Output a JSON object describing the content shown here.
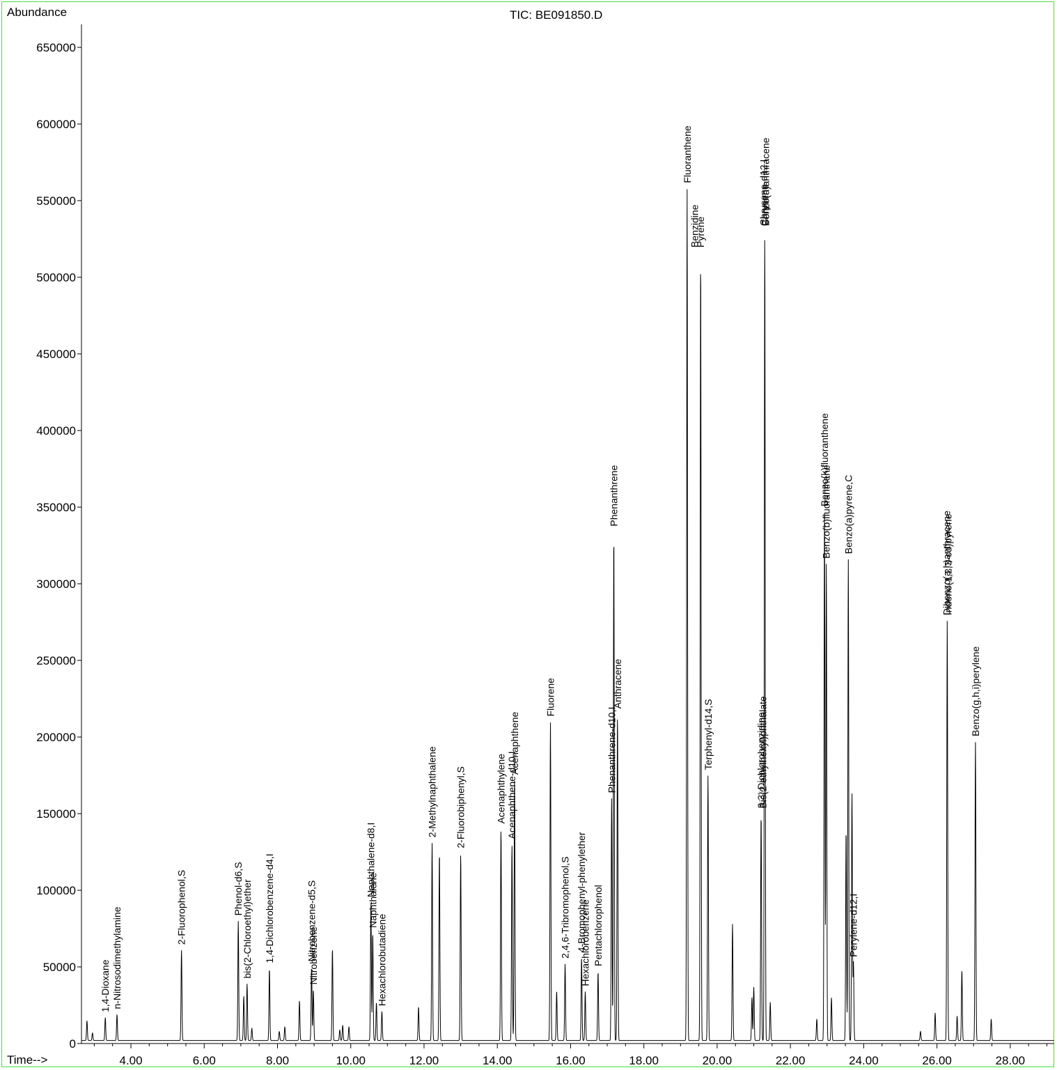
{
  "chart_data": {
    "type": "line",
    "title": "TIC: BE091850.D",
    "ylabel": "Abundance",
    "xlabel": "Time-->",
    "xlim": [
      2.65,
      29.2
    ],
    "ylim": [
      0,
      665000
    ],
    "grid": false,
    "legend": "none",
    "x_ticks": [
      4,
      6,
      8,
      10,
      12,
      14,
      16,
      18,
      20,
      22,
      24,
      26,
      28
    ],
    "x_tick_labels": [
      "4.00",
      "6.00",
      "8.00",
      "10.00",
      "12.00",
      "14.00",
      "16.00",
      "18.00",
      "20.00",
      "22.00",
      "24.00",
      "26.00",
      "28.00"
    ],
    "y_ticks": [
      0,
      50000,
      100000,
      150000,
      200000,
      250000,
      300000,
      350000,
      400000,
      450000,
      500000,
      550000,
      600000,
      650000
    ],
    "y_tick_labels": [
      "0",
      "50000",
      "100000",
      "150000",
      "200000",
      "250000",
      "300000",
      "350000",
      "400000",
      "450000",
      "500000",
      "550000",
      "600000",
      "650000"
    ],
    "baseline": 2000,
    "peaks": [
      {
        "rt": 2.8,
        "height": 13000
      },
      {
        "rt": 2.95,
        "height": 5000
      },
      {
        "rt": 3.3,
        "height": 15000
      },
      {
        "rt": 3.62,
        "height": 17000
      },
      {
        "rt": 5.38,
        "height": 59000
      },
      {
        "rt": 6.93,
        "height": 78000
      },
      {
        "rt": 7.08,
        "height": 29000
      },
      {
        "rt": 7.17,
        "height": 37000
      },
      {
        "rt": 7.3,
        "height": 8000
      },
      {
        "rt": 7.78,
        "height": 47000
      },
      {
        "rt": 8.05,
        "height": 6000
      },
      {
        "rt": 8.2,
        "height": 9000
      },
      {
        "rt": 8.6,
        "height": 26000
      },
      {
        "rt": 8.93,
        "height": 48000
      },
      {
        "rt": 8.98,
        "height": 33000
      },
      {
        "rt": 9.5,
        "height": 60000
      },
      {
        "rt": 9.7,
        "height": 7000
      },
      {
        "rt": 9.78,
        "height": 10000
      },
      {
        "rt": 9.95,
        "height": 9000
      },
      {
        "rt": 10.55,
        "height": 90000
      },
      {
        "rt": 10.6,
        "height": 70000
      },
      {
        "rt": 10.7,
        "height": 25000
      },
      {
        "rt": 10.85,
        "height": 19000
      },
      {
        "rt": 11.85,
        "height": 22000
      },
      {
        "rt": 12.22,
        "height": 129000
      },
      {
        "rt": 12.42,
        "height": 123000
      },
      {
        "rt": 13.0,
        "height": 122000
      },
      {
        "rt": 14.1,
        "height": 138000
      },
      {
        "rt": 14.4,
        "height": 128000
      },
      {
        "rt": 14.47,
        "height": 170000
      },
      {
        "rt": 15.45,
        "height": 208000
      },
      {
        "rt": 15.62,
        "height": 32000
      },
      {
        "rt": 15.85,
        "height": 50000
      },
      {
        "rt": 16.3,
        "height": 54000
      },
      {
        "rt": 16.4,
        "height": 32000
      },
      {
        "rt": 16.75,
        "height": 45000
      },
      {
        "rt": 17.12,
        "height": 158000
      },
      {
        "rt": 17.18,
        "height": 332000
      },
      {
        "rt": 17.28,
        "height": 213000
      },
      {
        "rt": 19.18,
        "height": 556000
      },
      {
        "rt": 19.55,
        "height": 514000
      },
      {
        "rt": 19.75,
        "height": 173000
      },
      {
        "rt": 20.42,
        "height": 76000
      },
      {
        "rt": 20.95,
        "height": 28000
      },
      {
        "rt": 21.0,
        "height": 35000
      },
      {
        "rt": 21.2,
        "height": 148000
      },
      {
        "rt": 21.3,
        "height": 528000
      },
      {
        "rt": 21.45,
        "height": 25000
      },
      {
        "rt": 22.72,
        "height": 14000
      },
      {
        "rt": 22.93,
        "height": 345000
      },
      {
        "rt": 22.98,
        "height": 311000
      },
      {
        "rt": 23.12,
        "height": 28000
      },
      {
        "rt": 23.52,
        "height": 138000
      },
      {
        "rt": 23.58,
        "height": 314000
      },
      {
        "rt": 23.68,
        "height": 162000
      },
      {
        "rt": 23.72,
        "height": 51000
      },
      {
        "rt": 25.55,
        "height": 6000
      },
      {
        "rt": 25.95,
        "height": 18000
      },
      {
        "rt": 26.28,
        "height": 274000
      },
      {
        "rt": 26.55,
        "height": 16000
      },
      {
        "rt": 26.68,
        "height": 46000
      },
      {
        "rt": 27.05,
        "height": 195000
      },
      {
        "rt": 27.48,
        "height": 14000
      }
    ],
    "annotations": [
      {
        "text": "1,4-Dioxane",
        "rt": 3.3
      },
      {
        "text": "n-Nitrosodimethylamine",
        "rt": 3.62
      },
      {
        "text": "2-Fluorophenol,S",
        "rt": 5.38
      },
      {
        "text": "Phenol-d6,S",
        "rt": 6.93
      },
      {
        "text": "bis(2-Chloroethyl)ether",
        "rt": 7.17
      },
      {
        "text": "1,4-Dichlorobenzene-d4,I",
        "rt": 7.78
      },
      {
        "text": "Nitrobenzene-d5,S",
        "rt": 8.93
      },
      {
        "text": "Nitrobenzene",
        "rt": 8.98
      },
      {
        "text": "Naphthalene-d8,I",
        "rt": 10.55
      },
      {
        "text": "Naphthalene",
        "rt": 10.6
      },
      {
        "text": "Hexachlorobutadiene",
        "rt": 10.85
      },
      {
        "text": "2-Methylnaphthalene",
        "rt": 12.22
      },
      {
        "text": "2-Fluorobiphenyl,S",
        "rt": 13.0
      },
      {
        "text": "Acenaphthylene",
        "rt": 14.1
      },
      {
        "text": "Acenaphthene-d10,I",
        "rt": 14.4
      },
      {
        "text": "Acenaphthene",
        "rt": 14.47
      },
      {
        "text": "Fluorene",
        "rt": 15.45
      },
      {
        "text": "2,4,6-Tribromophenol,S",
        "rt": 15.85
      },
      {
        "text": "4-Bromophenyl-phenylether",
        "rt": 16.3
      },
      {
        "text": "Hexachlorobenzene",
        "rt": 16.4
      },
      {
        "text": "Pentachlorophenol",
        "rt": 16.75
      },
      {
        "text": "Phenanthrene-d10,I",
        "rt": 17.12
      },
      {
        "text": "Phenanthrene",
        "rt": 17.18
      },
      {
        "text": "Anthracene",
        "rt": 17.28
      },
      {
        "text": "Fluoranthene",
        "rt": 19.18
      },
      {
        "text": "Benzidine",
        "rt": 19.38
      },
      {
        "text": "Pyrene",
        "rt": 19.55
      },
      {
        "text": "Terphenyl-d14,S",
        "rt": 19.75
      },
      {
        "text": "3,3'-Dichlorobenzidine",
        "rt": 21.2
      },
      {
        "text": "Bis(2-ethylhexyl)phthalate",
        "rt": 21.25
      },
      {
        "text": "Chrysene-d12,I",
        "rt": 21.27
      },
      {
        "text": "Chrysene",
        "rt": 21.3
      },
      {
        "text": "Benzo(a)anthracene",
        "rt": 21.32
      },
      {
        "text": "Benzo(k)fluoranthene",
        "rt": 22.93
      },
      {
        "text": "Benzo(b)fluoranthene",
        "rt": 22.98
      },
      {
        "text": "Benzo(a)pyrene,C",
        "rt": 23.58
      },
      {
        "text": "Perylene-d12,I",
        "rt": 23.72
      },
      {
        "text": "Dibenzo(a,h)anthracene",
        "rt": 26.26
      },
      {
        "text": "Indeno(1,2,3-cd)pyrene",
        "rt": 26.3
      },
      {
        "text": "Benzo(g,h,i)perylene",
        "rt": 27.05
      }
    ]
  }
}
